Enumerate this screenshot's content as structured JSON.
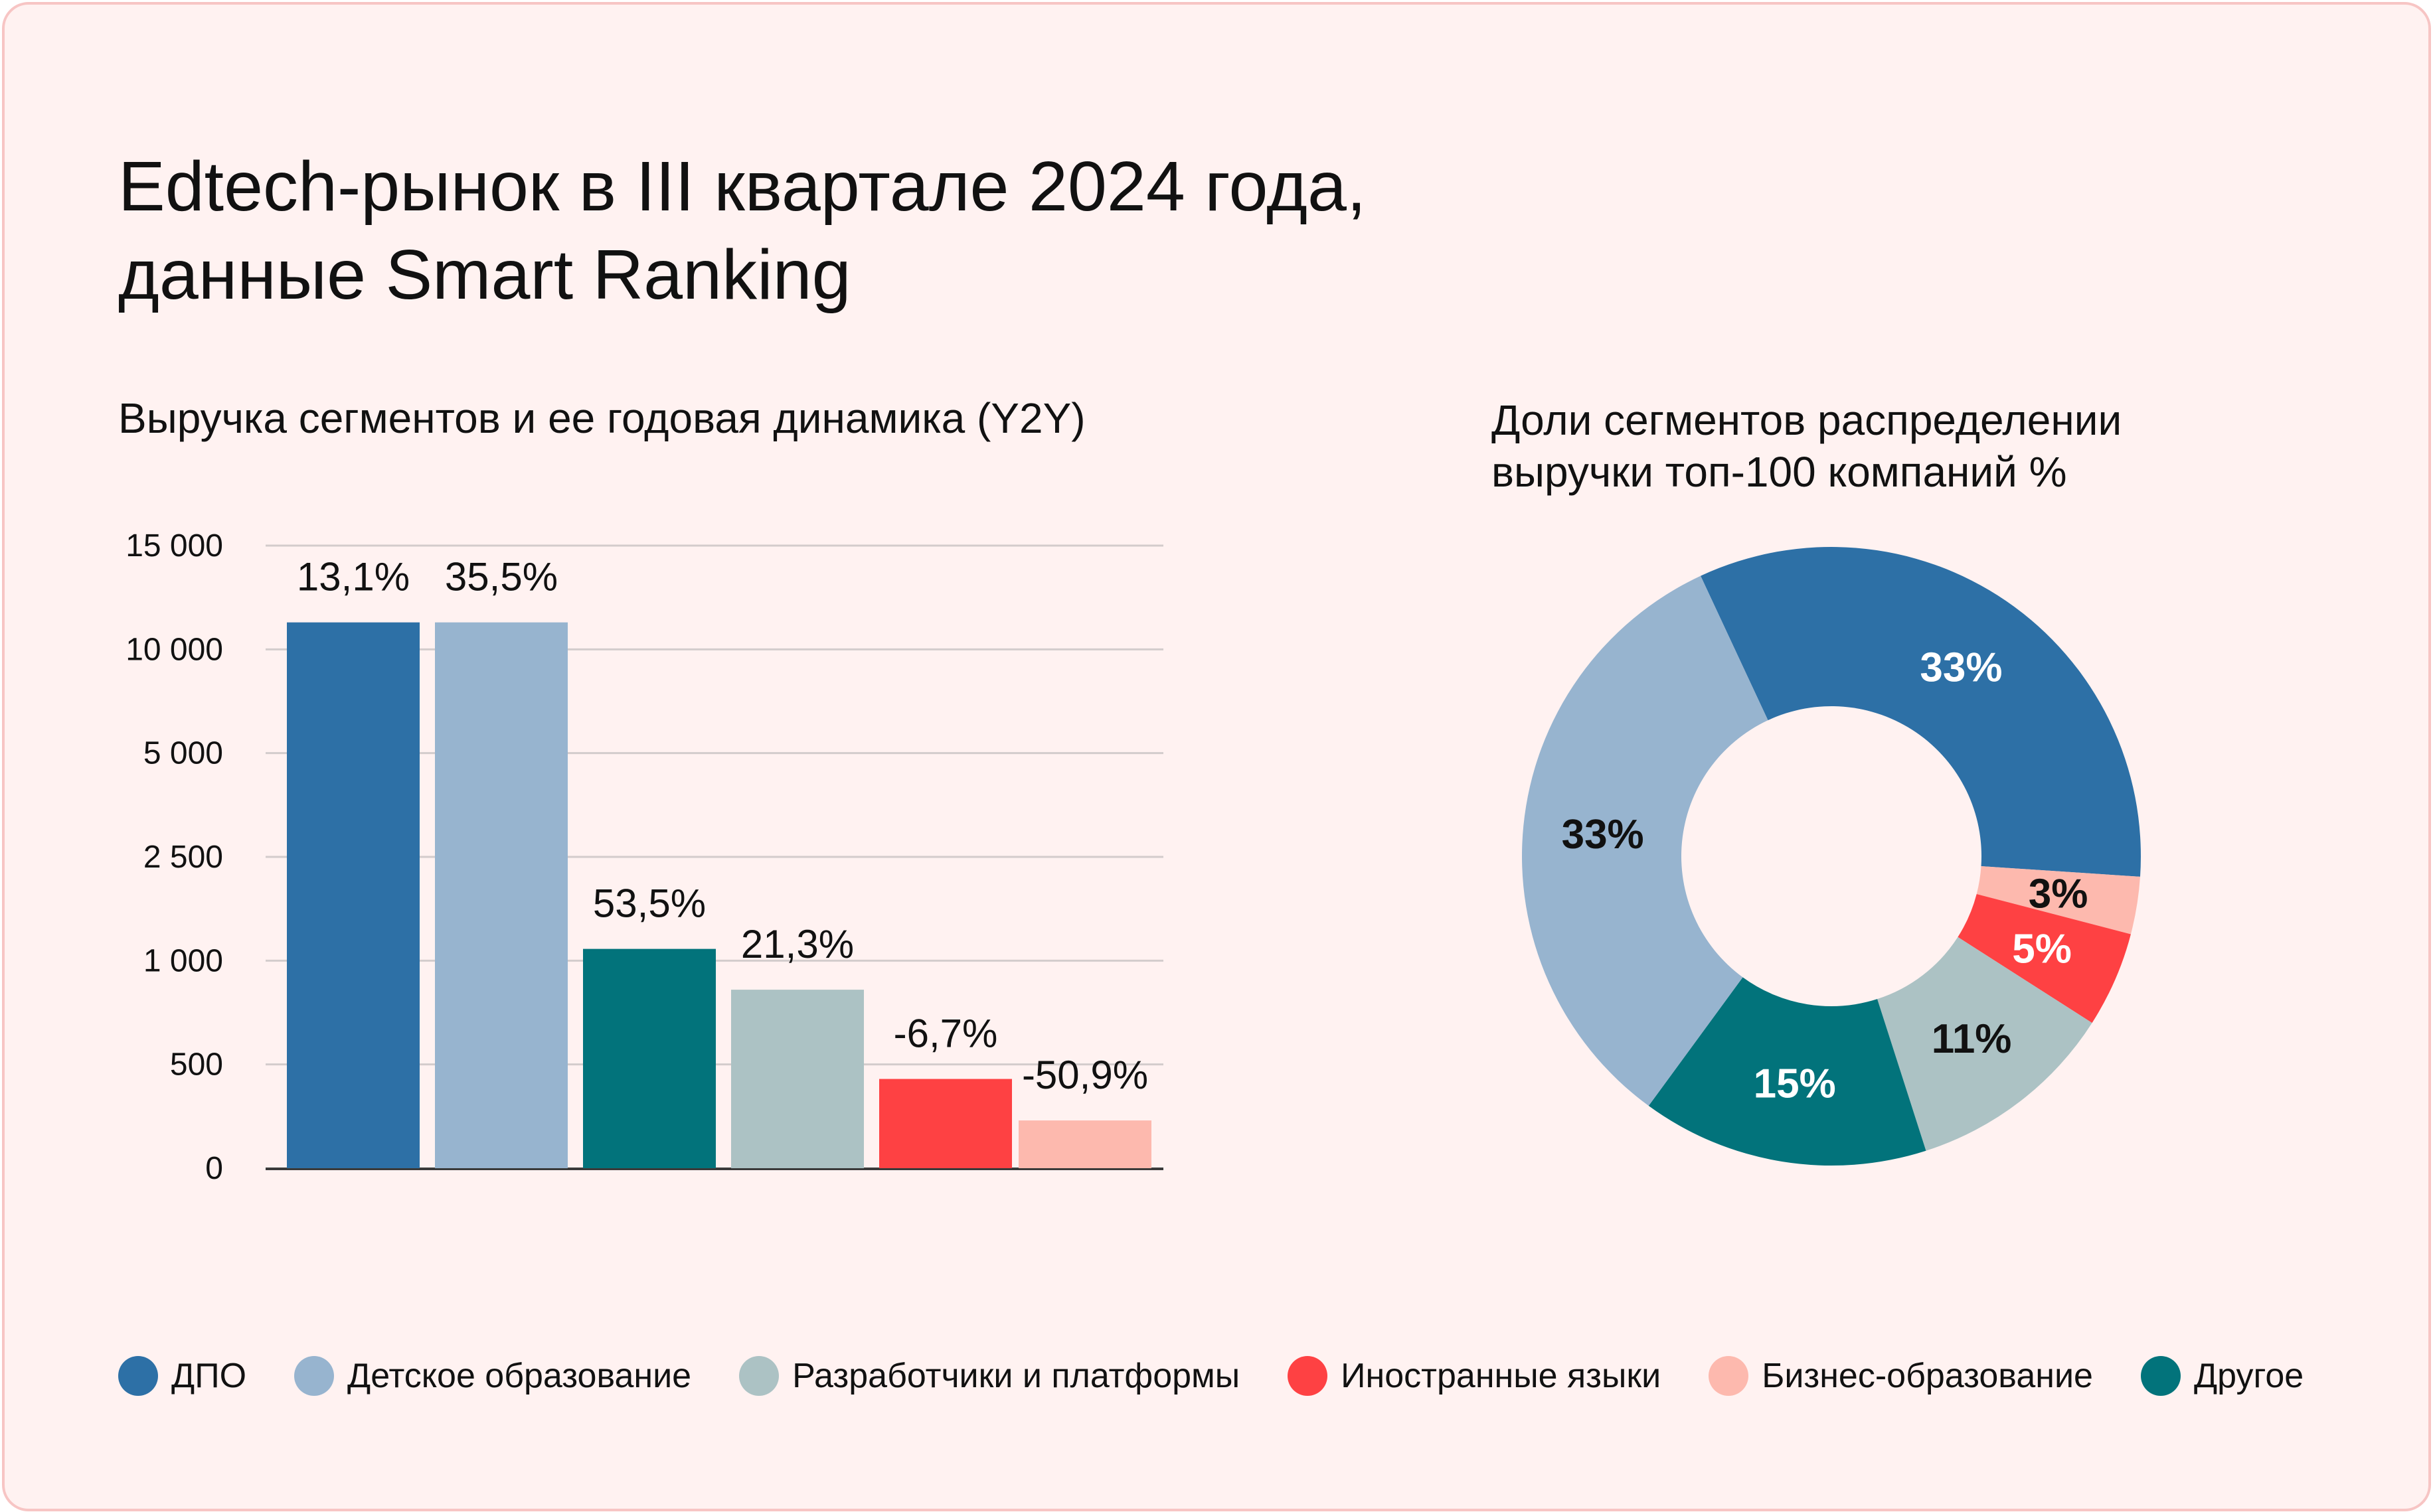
{
  "header": {
    "title_line1": "Edtech-рынок в III квартале 2024 года,",
    "title_line2": "данные Smart Ranking"
  },
  "colors": {
    "dpo": "#2d70a6",
    "kids": "#97b4cf",
    "devs": "#acc2c4",
    "languages": "#fe4143",
    "business": "#fdb9ae",
    "other": "#02737b"
  },
  "chart_data": [
    {
      "type": "bar",
      "title": "Выручка сегментов и ее годовая динамика (Y2Y)",
      "y_ticks": [
        "15 000",
        "10 000",
        "5 000",
        "2 500",
        "1 000",
        "500",
        "0"
      ],
      "bars": [
        {
          "segment": "ДПО",
          "color_key": "dpo",
          "label": "13,1%",
          "y2y": 13.1,
          "value": 11300
        },
        {
          "segment": "Детское образование",
          "color_key": "kids",
          "label": "35,5%",
          "y2y": 35.5,
          "value": 11300
        },
        {
          "segment": "Другое",
          "color_key": "other",
          "label": "53,5%",
          "y2y": 53.5,
          "value": 1170
        },
        {
          "segment": "Разработчики и платформы",
          "color_key": "devs",
          "label": "21,3%",
          "y2y": 21.3,
          "value": 860
        },
        {
          "segment": "Иностранные языки",
          "color_key": "languages",
          "label": "-6,7%",
          "y2y": -6.7,
          "value": 430
        },
        {
          "segment": "Бизнес-образование",
          "color_key": "business",
          "label": "-50,9%",
          "y2y": -50.9,
          "value": 230
        }
      ],
      "grid": true
    },
    {
      "type": "pie",
      "title_line1": "Доли сегментов распределении",
      "title_line2": "выручки топ-100 компаний %",
      "donut": true,
      "slices": [
        {
          "segment": "ДПО",
          "color_key": "dpo",
          "label": "33%",
          "value": 33,
          "label_color": "#ffffff"
        },
        {
          "segment": "Бизнес-образование",
          "color_key": "business",
          "label": "3%",
          "value": 3,
          "label_color": "#111111"
        },
        {
          "segment": "Иностранные языки",
          "color_key": "languages",
          "label": "5%",
          "value": 5,
          "label_color": "#ffffff"
        },
        {
          "segment": "Разработчики и платформы",
          "color_key": "devs",
          "label": "11%",
          "value": 11,
          "label_color": "#111111"
        },
        {
          "segment": "Другое",
          "color_key": "other",
          "label": "15%",
          "value": 15,
          "label_color": "#ffffff"
        },
        {
          "segment": "Детское образование",
          "color_key": "kids",
          "label": "33%",
          "value": 33,
          "label_color": "#111111"
        }
      ]
    }
  ],
  "legend": [
    {
      "label": "ДПО",
      "color_key": "dpo"
    },
    {
      "label": "Детское образование",
      "color_key": "kids"
    },
    {
      "label": "Разработчики и платформы",
      "color_key": "devs"
    },
    {
      "label": "Иностранные языки",
      "color_key": "languages"
    },
    {
      "label": "Бизнес-образование",
      "color_key": "business"
    },
    {
      "label": "Другое",
      "color_key": "other"
    }
  ]
}
